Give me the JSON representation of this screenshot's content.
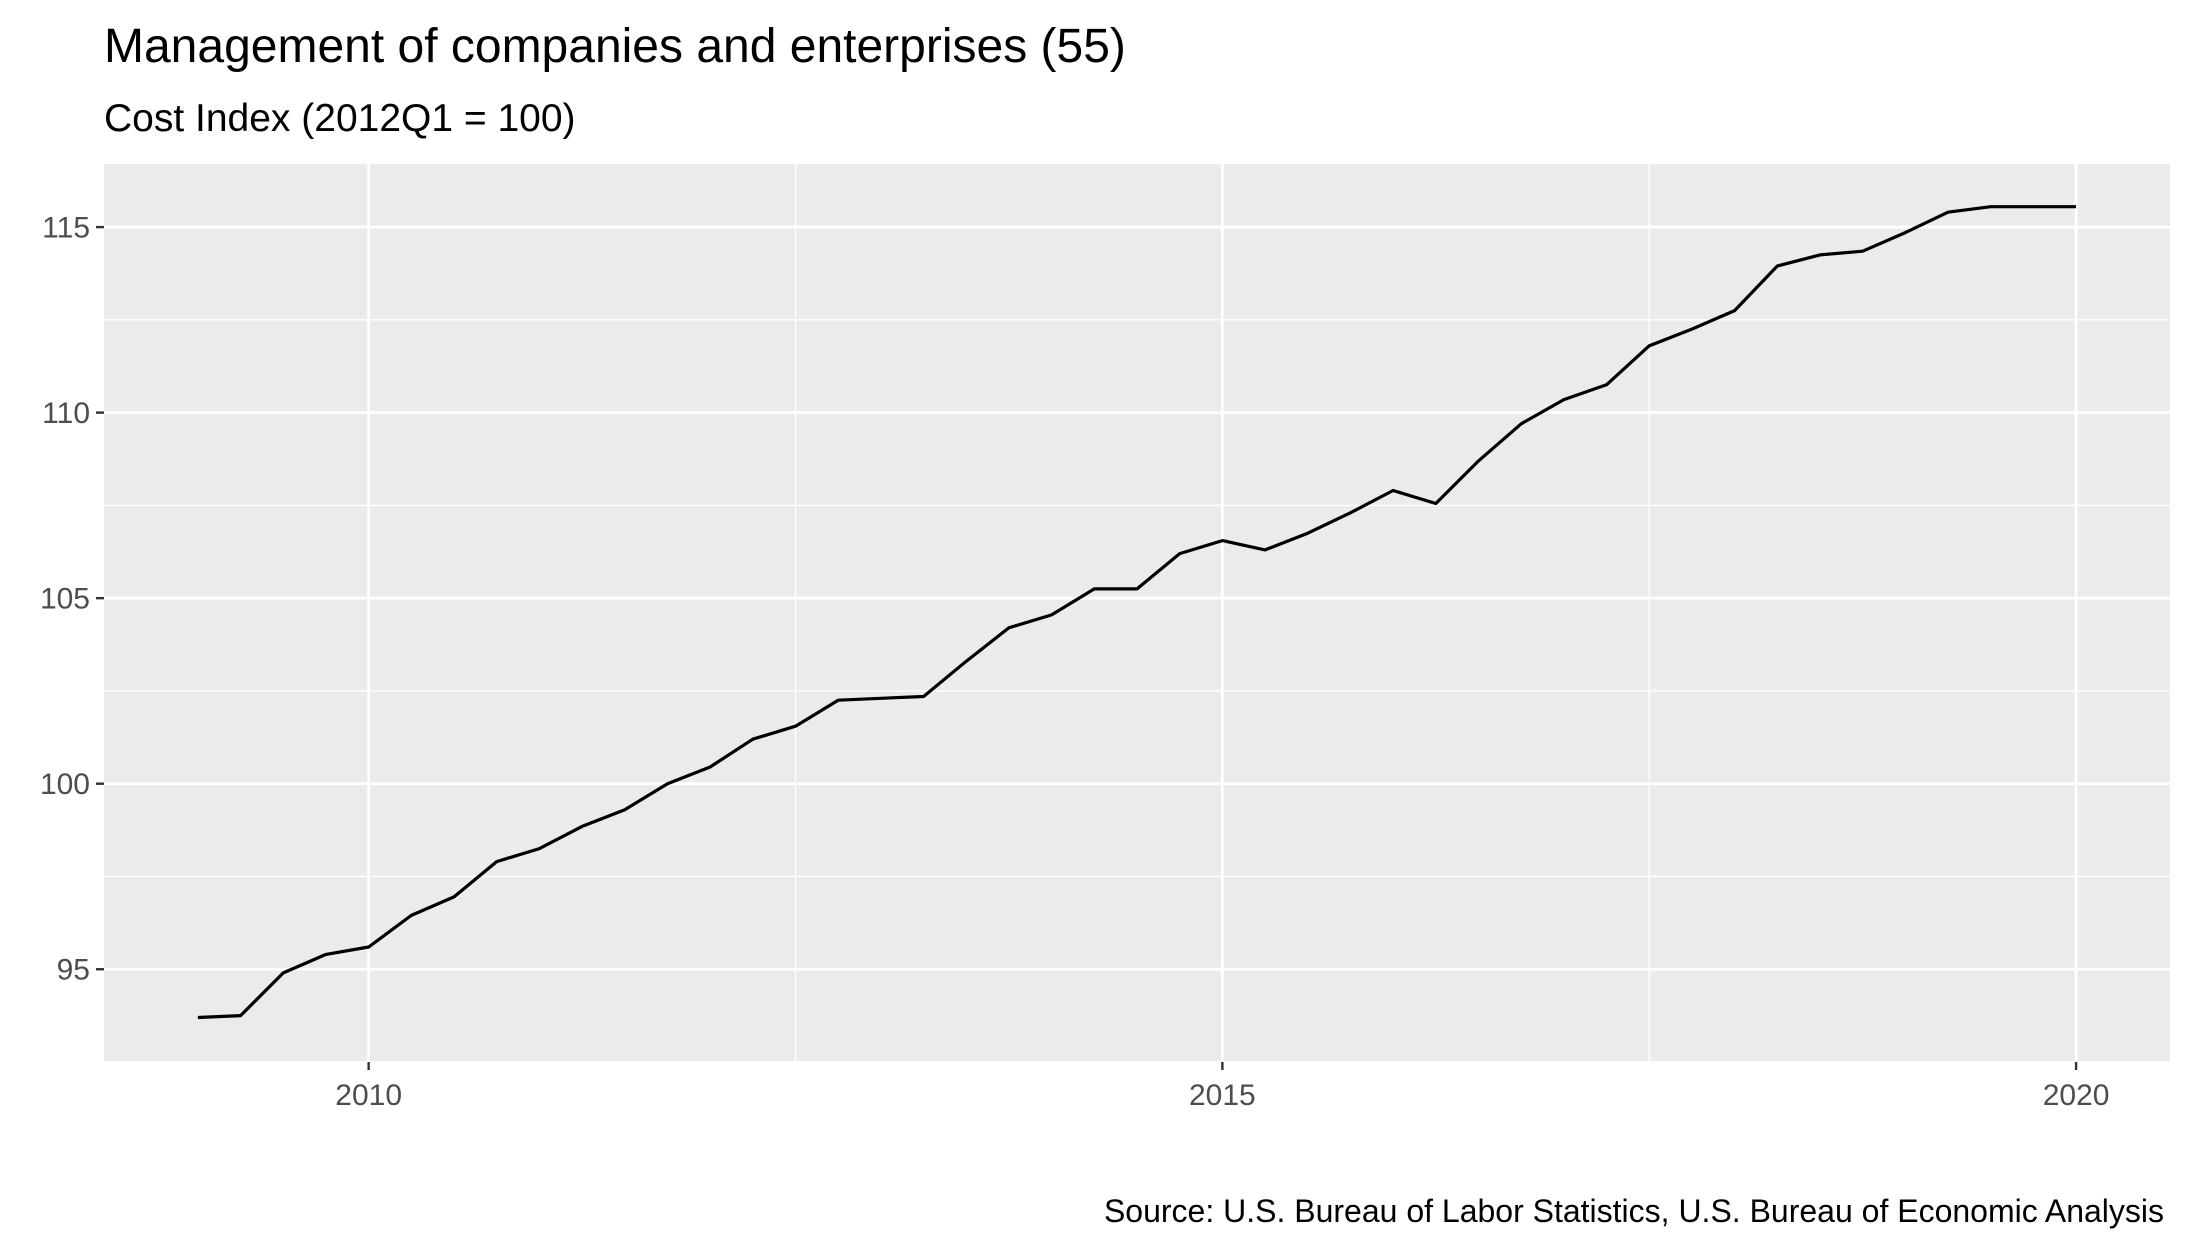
{
  "chart_data": {
    "type": "line",
    "title": "Management of companies and enterprises (55)",
    "subtitle": "Cost Index (2012Q1 = 100)",
    "caption": "Source: U.S. Bureau of Labor Statistics, U.S. Bureau of Economic Analysis",
    "xlabel": "",
    "ylabel": "",
    "xlim": [
      2008.45,
      2020.55
    ],
    "ylim": [
      92.5,
      116.7
    ],
    "x_ticks": [
      2010,
      2015,
      2020
    ],
    "x_tick_labels": [
      "2010",
      "2015",
      "2020"
    ],
    "y_ticks": [
      95,
      100,
      105,
      110,
      115
    ],
    "y_tick_labels": [
      "95",
      "100",
      "105",
      "110",
      "115"
    ],
    "grid": true,
    "legend": "none",
    "colors": {
      "panel": "#ebebeb",
      "grid": "#ffffff",
      "line": "#000000"
    },
    "series": [
      {
        "x": [
          2009.0,
          2009.25,
          2009.5,
          2009.75,
          2010.0,
          2010.25,
          2010.5,
          2010.75,
          2011.0,
          2011.25,
          2011.5,
          2011.75,
          2012.0,
          2012.25,
          2012.5,
          2012.75,
          2013.0,
          2013.25,
          2013.5,
          2013.75,
          2014.0,
          2014.25,
          2014.5,
          2014.75,
          2015.0,
          2015.25,
          2015.5,
          2015.75,
          2016.0,
          2016.25,
          2016.5,
          2016.75,
          2017.0,
          2017.25,
          2017.5,
          2017.75,
          2018.0,
          2018.25,
          2018.5,
          2018.75,
          2019.0,
          2019.25,
          2019.5,
          2019.75,
          2020.0
        ],
        "values": [
          93.7,
          93.75,
          94.9,
          95.4,
          95.6,
          96.45,
          96.95,
          97.9,
          98.25,
          98.85,
          99.3,
          100.0,
          100.45,
          101.2,
          101.55,
          102.25,
          102.3,
          102.35,
          103.3,
          104.2,
          104.55,
          105.25,
          105.25,
          106.2,
          106.55,
          106.3,
          106.75,
          107.3,
          107.9,
          107.55,
          108.7,
          109.7,
          110.35,
          110.75,
          111.8,
          112.25,
          112.75,
          113.95,
          114.25,
          114.35,
          114.85,
          115.4,
          115.55,
          115.55,
          115.55
        ]
      }
    ]
  }
}
